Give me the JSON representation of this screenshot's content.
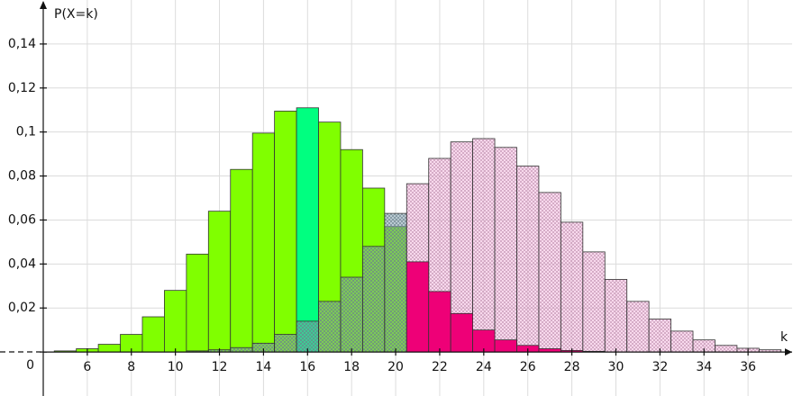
{
  "chart_data": {
    "type": "bar",
    "y_label": "P(X=k)",
    "x_label": "k",
    "xlim": [
      4,
      38
    ],
    "ylim": [
      -0.02,
      0.16
    ],
    "xticks": [
      6,
      8,
      10,
      12,
      14,
      16,
      18,
      20,
      22,
      24,
      26,
      28,
      30,
      32,
      34,
      36
    ],
    "yticks": [
      0,
      {
        "value": 0.02,
        "label": "0,02"
      },
      {
        "value": 0.04,
        "label": "0,04"
      },
      {
        "value": 0.06,
        "label": "0,06"
      },
      {
        "value": 0.08,
        "label": "0,08"
      },
      {
        "value": 0.1,
        "label": "0,1"
      },
      {
        "value": 0.12,
        "label": "0,12"
      },
      {
        "value": 0.14,
        "label": "0,14"
      }
    ],
    "grid": true,
    "series": [
      {
        "color": "#80ff00",
        "pattern": "solid",
        "x": [
          5,
          6,
          7,
          8,
          9,
          10,
          11,
          12,
          13,
          14,
          15,
          17,
          18,
          19,
          20
        ],
        "values": [
          0.0005,
          0.0015,
          0.0035,
          0.008,
          0.016,
          0.028,
          0.0445,
          0.064,
          0.083,
          0.0995,
          0.1095,
          0.1045,
          0.092,
          0.0745,
          0.057
        ]
      },
      {
        "color": "#00ff80",
        "pattern": "solid",
        "x": [
          16
        ],
        "values": [
          0.111
        ]
      },
      {
        "color": "#7a9aa8",
        "pattern": "hatch",
        "x": [
          11,
          12,
          13,
          14,
          15,
          16,
          17,
          18,
          19,
          20
        ],
        "values": [
          0.0005,
          0.001,
          0.002,
          0.004,
          0.008,
          0.014,
          0.023,
          0.034,
          0.048,
          0.063
        ]
      },
      {
        "color": "#f2b4dc",
        "pattern": "hatch",
        "x": [
          21,
          22,
          23,
          24,
          25,
          26,
          27,
          28,
          29,
          30,
          31,
          32,
          33,
          34,
          35,
          36,
          37
        ],
        "values": [
          0.0765,
          0.088,
          0.0955,
          0.097,
          0.093,
          0.0845,
          0.0725,
          0.059,
          0.0455,
          0.033,
          0.023,
          0.015,
          0.0095,
          0.0055,
          0.003,
          0.0017,
          0.001
        ]
      },
      {
        "color": "#ee0077",
        "pattern": "solid",
        "x": [
          21,
          22,
          23,
          24,
          25,
          26,
          27,
          28,
          29
        ],
        "values": [
          0.041,
          0.0275,
          0.0175,
          0.01,
          0.0055,
          0.003,
          0.0015,
          0.0007,
          0.0003
        ]
      }
    ]
  }
}
